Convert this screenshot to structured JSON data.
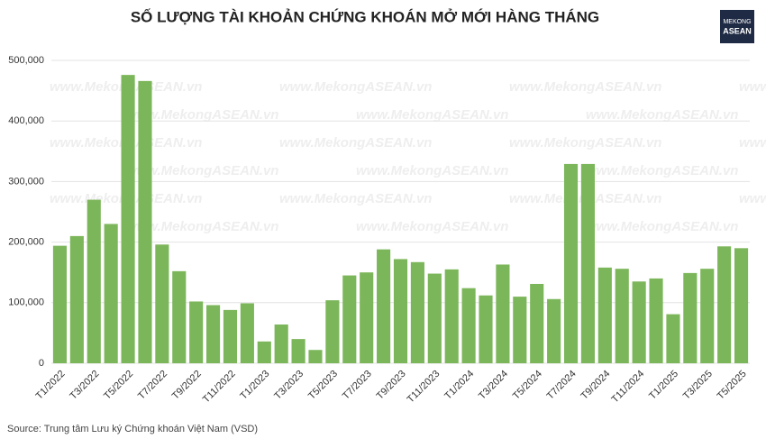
{
  "chart_data": {
    "type": "bar",
    "title": "SỐ LƯỢNG TÀI KHOẢN CHỨNG KHOÁN MỞ MỚI HÀNG THÁNG",
    "source": "Source: Trung tâm Lưu ký Chứng khoán Việt Nam (VSD)",
    "watermark": "www.MekongASEAN.vn",
    "logo": [
      "MEKONG",
      "ASEAN"
    ],
    "categories": [
      "T1/2022",
      null,
      "T3/2022",
      null,
      "T5/2022",
      null,
      "T7/2022",
      null,
      "T9/2022",
      null,
      "T11/2022",
      null,
      "T1/2023",
      null,
      "T3/2023",
      null,
      "T5/2023",
      null,
      "T7/2023",
      null,
      "T9/2023",
      null,
      "T11/2023",
      null,
      "T1/2024",
      null,
      "T3/2024",
      null,
      "T5/2024",
      null,
      "T7/2024",
      null,
      "T9/2024",
      null,
      "T11/2024",
      null,
      "T1/2025",
      null,
      "T3/2025",
      null,
      "T5/2025"
    ],
    "values": [
      194000,
      210000,
      270000,
      230000,
      476000,
      466000,
      196000,
      152000,
      102000,
      96000,
      88000,
      99000,
      36000,
      64000,
      40000,
      22000,
      104000,
      145000,
      150000,
      188000,
      172000,
      167000,
      148000,
      155000,
      124000,
      112000,
      163000,
      110000,
      131000,
      106000,
      329000,
      329000,
      158000,
      156000,
      135000,
      140000,
      81000,
      149000,
      156000,
      193000,
      190000
    ],
    "color": "#7cb65a",
    "ylim": [
      0,
      500000
    ],
    "yticks": [
      0,
      {
        "value": 100000,
        "label": "100,000"
      },
      {
        "value": 200000,
        "label": "200,000"
      },
      {
        "value": 300000,
        "label": "300,000"
      },
      {
        "value": 400000,
        "label": "400,000"
      },
      {
        "value": 500000,
        "label": "500,000"
      }
    ],
    "grid": true
  }
}
